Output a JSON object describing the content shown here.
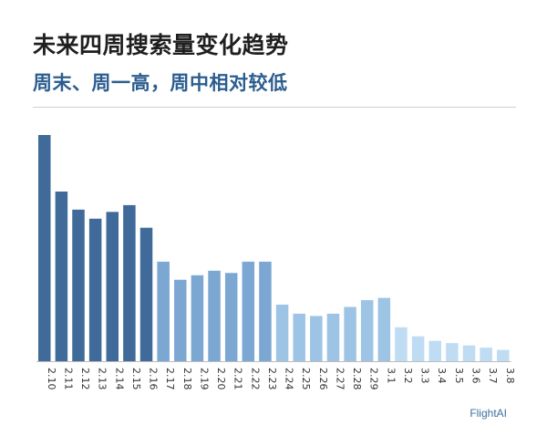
{
  "header": {
    "title": "未来四周搜索量变化趋势",
    "subtitle": "周末、周一高，周中相对较低"
  },
  "brand": "FlightAI",
  "chart_data": {
    "type": "bar",
    "title": "未来四周搜索量变化趋势",
    "subtitle": "周末、周一高，周中相对较低",
    "xlabel": "",
    "ylabel": "",
    "grid": false,
    "y_axis_visible": false,
    "ylim": [
      0,
      100
    ],
    "categories": [
      "2.10",
      "2.11",
      "2.12",
      "2.13",
      "2.14",
      "2.15",
      "2.16",
      "2.17",
      "2.18",
      "2.19",
      "2.20",
      "2.21",
      "2.22",
      "2.23",
      "2.24",
      "2.25",
      "2.26",
      "2.27",
      "2.28",
      "2.29",
      "3.1",
      "3.2",
      "3.3",
      "3.4",
      "3.5",
      "3.6",
      "3.7",
      "3.8"
    ],
    "values": [
      100,
      75,
      67,
      63,
      66,
      69,
      59,
      44,
      36,
      38,
      40,
      39,
      44,
      44,
      25,
      21,
      20,
      21,
      24,
      27,
      28,
      15,
      11,
      9,
      8,
      7,
      6,
      5
    ],
    "colors": {
      "week1": "#3f6a99",
      "week2": "#7ba7d2",
      "week3": "#9ec4e5",
      "week4": "#bfdcf2"
    }
  }
}
